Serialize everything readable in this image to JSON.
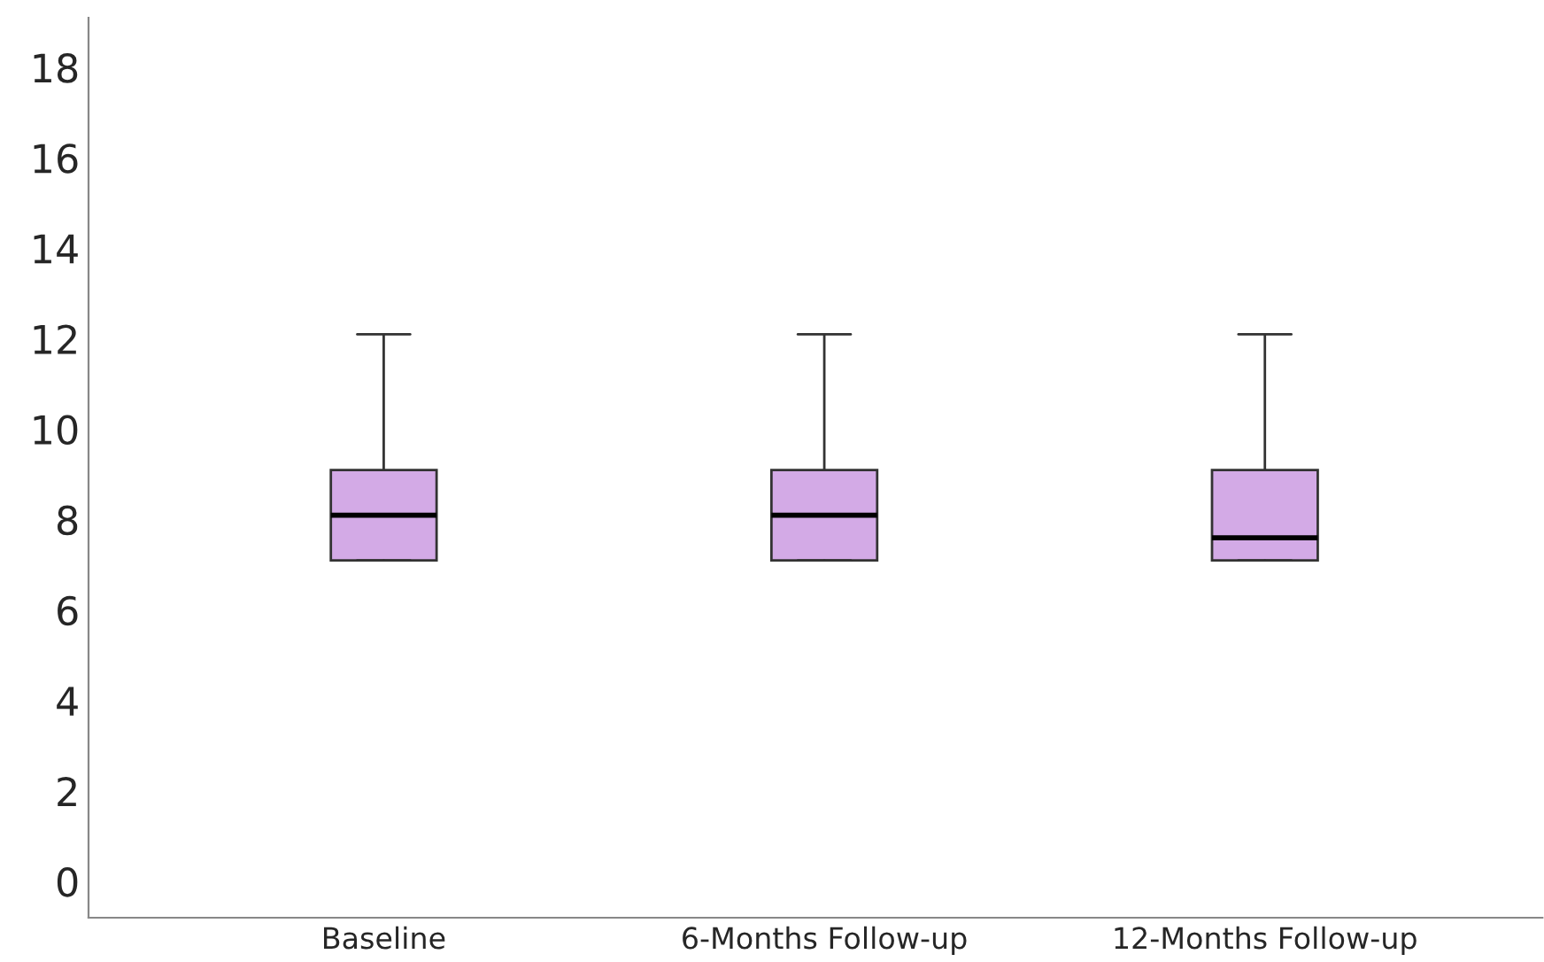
{
  "chart_data": {
    "type": "box",
    "categories": [
      "Baseline",
      "6-Months Follow-up",
      "12-Months Follow-up"
    ],
    "boxes": [
      {
        "low": 7.1,
        "q1": 7.1,
        "median": 8.1,
        "q3": 9.1,
        "high": 12.1
      },
      {
        "low": 7.1,
        "q1": 7.1,
        "median": 8.1,
        "q3": 9.1,
        "high": 12.1
      },
      {
        "low": 7.1,
        "q1": 7.1,
        "median": 7.6,
        "q3": 9.1,
        "high": 12.1
      }
    ],
    "color": "#d3aae6",
    "ylim": [
      -0.8,
      19.1
    ],
    "yticks": [
      0,
      2,
      4,
      6,
      8,
      10,
      12,
      14,
      16,
      18
    ],
    "grid": false
  }
}
